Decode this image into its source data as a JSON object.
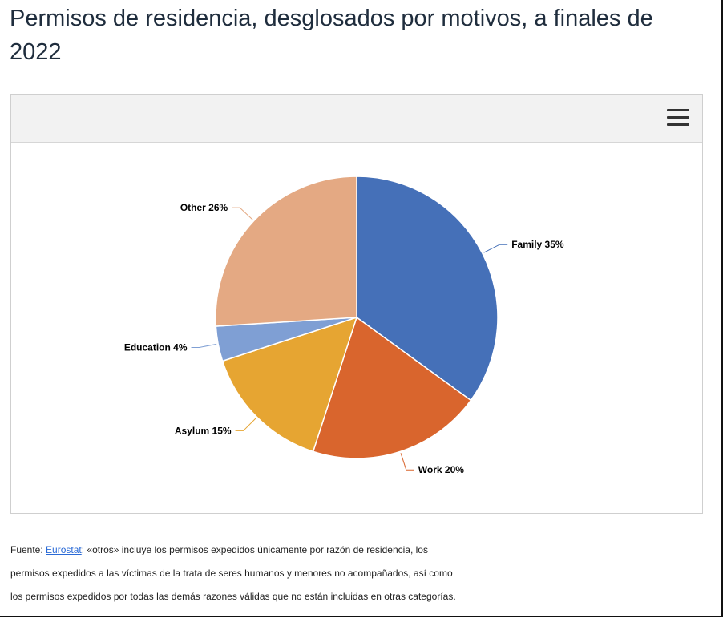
{
  "title": "Permisos de residencia, desglosados por motivos, a finales de 2022",
  "toolbar": {
    "menu_icon": "hamburger-menu-icon"
  },
  "chart_data": {
    "type": "pie",
    "slices": [
      {
        "label": "Family 35%",
        "value": 35,
        "color": "#4570b8"
      },
      {
        "label": "Work 20%",
        "value": 20,
        "color": "#d9652d"
      },
      {
        "label": "Asylum 15%",
        "value": 15,
        "color": "#e6a532"
      },
      {
        "label": "Education 4%",
        "value": 4,
        "color": "#7f9fd4"
      },
      {
        "label": "Other 26%",
        "value": 26,
        "color": "#e4a983"
      }
    ]
  },
  "footnote": {
    "prefix": "Fuente: ",
    "link": "Eurostat",
    "line1_rest": "; «otros» incluye los permisos expedidos únicamente por razón de residencia, los",
    "line2": "permisos expedidos a las víctimas de la trata de seres humanos y menores no acompañados, así como",
    "line3": "los permisos expedidos por todas las demás razones válidas que no están incluidas en otras categorías."
  }
}
